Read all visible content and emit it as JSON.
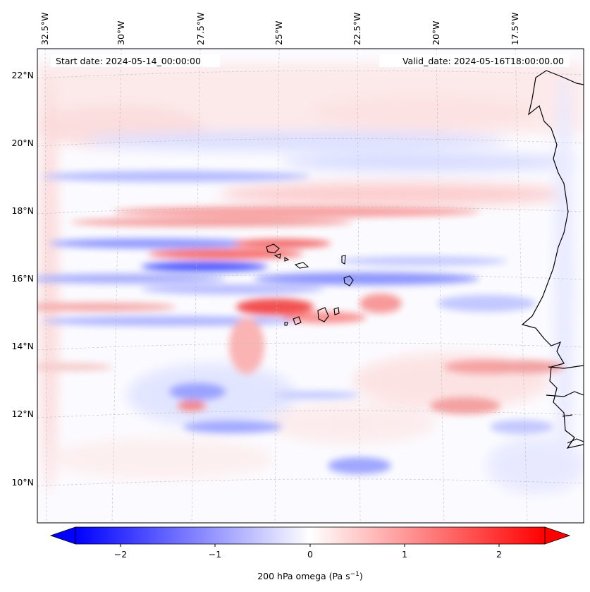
{
  "map": {
    "start_date_label": "Start date: 2024-05-14_00:00:00",
    "valid_date_label": "Valid_date: 2024-05-16T18:00:00.00",
    "lon_ticks": [
      "32.5°W",
      "30°W",
      "27.5°W",
      "25°W",
      "22.5°W",
      "20°W",
      "17.5°W"
    ],
    "lat_ticks": [
      "22°N",
      "20°N",
      "18°N",
      "16°N",
      "14°N",
      "12°N",
      "10°N"
    ],
    "gridlines": "dashed grey",
    "coastline_color": "#000000",
    "field": "200 hPa omega",
    "color_scale": [
      "#0000ff",
      "#ffffff",
      "#ff0000"
    ]
  },
  "colorbar": {
    "ticks": [
      "−2",
      "−1",
      "0",
      "1",
      "2"
    ],
    "label_main": "200 hPa omega (Pa s",
    "label_exp": "−1",
    "label_close": ")",
    "range": [
      -2.75,
      2.75
    ],
    "extend": "both"
  }
}
